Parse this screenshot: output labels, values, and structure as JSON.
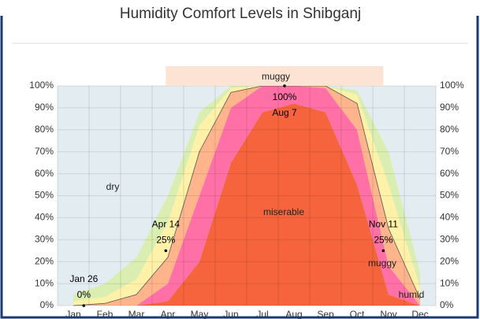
{
  "chart_data": {
    "type": "stacked_area",
    "title": "Humidity Comfort Levels in Shibganj",
    "categories": [
      "Jan",
      "Feb",
      "Mar",
      "Apr",
      "May",
      "Jun",
      "Jul",
      "Aug",
      "Sep",
      "Oct",
      "Nov",
      "Dec"
    ],
    "series": [
      {
        "name": "miserable",
        "color": "#f5643c",
        "values": [
          0,
          0,
          0,
          2,
          20,
          65,
          88,
          92,
          88,
          55,
          5,
          0
        ]
      },
      {
        "color": "#ff70a6",
        "values": [
          0,
          0,
          0,
          8,
          30,
          25,
          12,
          8,
          11,
          25,
          13,
          0
        ]
      },
      {
        "name": "muggy",
        "color": "#ffb48c",
        "values": [
          0,
          1,
          5,
          12,
          20,
          7,
          0,
          0,
          1,
          12,
          17,
          3
        ]
      },
      {
        "name": "humid",
        "color": "#fff2a8",
        "values": [
          2,
          3,
          7,
          16,
          12,
          2,
          0,
          0,
          0,
          4,
          20,
          5
        ]
      },
      {
        "color": "#d9eeb0",
        "values": [
          3,
          6,
          10,
          12,
          6,
          1,
          0,
          0,
          0,
          2,
          15,
          7
        ]
      },
      {
        "name": "dry",
        "color": "#e3edf1",
        "values": [
          95,
          90,
          78,
          50,
          12,
          0,
          0,
          0,
          0,
          2,
          30,
          85
        ]
      }
    ],
    "annotations": [
      {
        "label": "Jan 26",
        "value": 0,
        "value_label": "0%"
      },
      {
        "label": "Apr 14",
        "value": 25,
        "value_label": "25%"
      },
      {
        "label": "Nov 11",
        "value": 25,
        "value_label": "25%"
      },
      {
        "label": "Aug 7",
        "value": 100,
        "value_label": "100%"
      }
    ],
    "ylim": [
      0,
      100
    ],
    "yticks": [
      {
        "value": 0,
        "label": "0%"
      },
      {
        "value": 10,
        "label": "10%"
      },
      {
        "value": 20,
        "label": "20%"
      },
      {
        "value": 30,
        "label": "30%"
      },
      {
        "value": 40,
        "label": "40%"
      },
      {
        "value": 50,
        "label": "50%"
      },
      {
        "value": 60,
        "label": "60%"
      },
      {
        "value": 70,
        "label": "70%"
      },
      {
        "value": 80,
        "label": "80%"
      },
      {
        "value": 90,
        "label": "90%"
      },
      {
        "value": 100,
        "label": "100%"
      }
    ],
    "y2lim": [
      0,
      100
    ],
    "y2ticks": [
      {
        "value": 0,
        "label": "0%"
      },
      {
        "value": 10,
        "label": "10%"
      },
      {
        "value": 20,
        "label": "20%"
      },
      {
        "value": 30,
        "label": "30%"
      },
      {
        "value": 40,
        "label": "40%"
      },
      {
        "value": 50,
        "label": "50%"
      },
      {
        "value": 60,
        "label": "60%"
      },
      {
        "value": 70,
        "label": "70%"
      },
      {
        "value": 80,
        "label": "80%"
      },
      {
        "value": 90,
        "label": "90%"
      },
      {
        "value": 100,
        "label": "100%"
      }
    ],
    "grid": true
  }
}
